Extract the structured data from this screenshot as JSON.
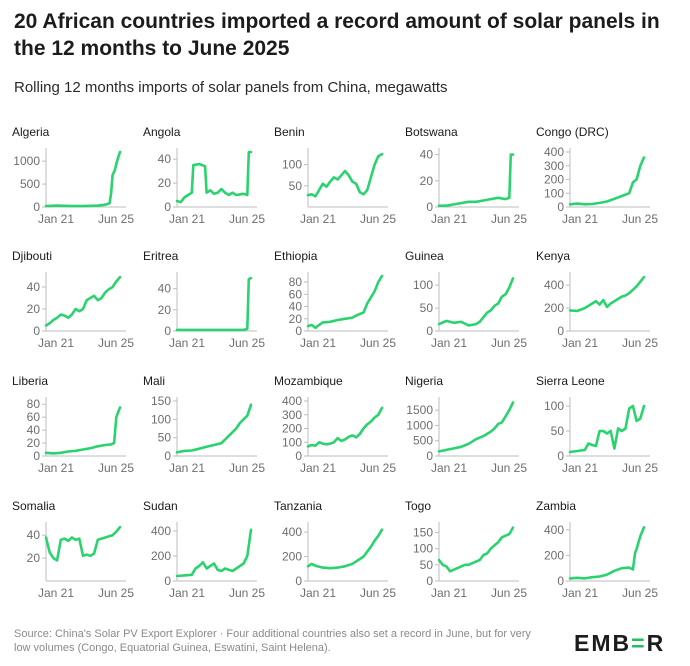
{
  "title": "20 African countries imported a record amount of solar panels in the 12 months to June 2025",
  "subtitle": "Rolling 12 months imports of solar panels from China, megawatts",
  "footer": "Source: China's Solar PV Export Explorer · Four additional countries also set a record in June, but for very low volumes (Congo, Equatorial Guinea, Eswatini, Saint Helena).",
  "logo": {
    "pre": "EMB",
    "accent": "=",
    "post": "R"
  },
  "colors": {
    "line": "#2bd36f",
    "axis": "#bdbdbd",
    "text": "#6e6e6e"
  },
  "chart_data": [
    {
      "type": "line",
      "country": "Algeria",
      "xlabels": [
        "Jan 21",
        "Jun 25"
      ],
      "yticks": [
        0,
        500,
        1000
      ],
      "ylim": [
        0,
        1200
      ],
      "x": [
        0,
        0.15,
        0.3,
        0.5,
        0.7,
        0.8,
        0.86,
        0.88,
        0.9,
        0.93,
        0.96,
        1
      ],
      "values": [
        20,
        30,
        25,
        20,
        30,
        50,
        80,
        300,
        700,
        800,
        1000,
        1200
      ]
    },
    {
      "type": "line",
      "country": "Angola",
      "xlabels": [
        "Jan 21",
        "Jun 25"
      ],
      "yticks": [
        0,
        20,
        40
      ],
      "ylim": [
        0,
        46
      ],
      "x": [
        0,
        0.05,
        0.1,
        0.15,
        0.2,
        0.22,
        0.3,
        0.38,
        0.4,
        0.45,
        0.5,
        0.55,
        0.6,
        0.65,
        0.7,
        0.75,
        0.8,
        0.9,
        0.95,
        0.97,
        1
      ],
      "values": [
        5,
        4,
        8,
        10,
        12,
        35,
        36,
        34,
        12,
        14,
        11,
        12,
        15,
        12,
        10,
        12,
        10,
        11,
        10,
        46,
        46
      ]
    },
    {
      "type": "line",
      "country": "Benin",
      "xlabels": [
        "Jan 21",
        "Jun 25"
      ],
      "yticks": [
        50,
        100
      ],
      "ylim": [
        0,
        130
      ],
      "x": [
        0,
        0.05,
        0.1,
        0.15,
        0.2,
        0.25,
        0.3,
        0.35,
        0.4,
        0.45,
        0.5,
        0.55,
        0.6,
        0.65,
        0.7,
        0.75,
        0.8,
        0.85,
        0.9,
        0.95,
        1
      ],
      "values": [
        28,
        30,
        25,
        40,
        55,
        48,
        60,
        70,
        65,
        75,
        85,
        75,
        60,
        55,
        35,
        30,
        40,
        70,
        100,
        120,
        125
      ]
    },
    {
      "type": "line",
      "country": "Botswana",
      "xlabels": [
        "Jan 21",
        "Jun 25"
      ],
      "yticks": [
        0,
        20,
        40
      ],
      "ylim": [
        0,
        42
      ],
      "x": [
        0,
        0.1,
        0.2,
        0.3,
        0.4,
        0.5,
        0.6,
        0.7,
        0.8,
        0.9,
        0.95,
        0.97,
        1
      ],
      "values": [
        1,
        1,
        2,
        3,
        4,
        4,
        5,
        6,
        7,
        6,
        7,
        40,
        40
      ]
    },
    {
      "type": "line",
      "country": "Congo (DRC)",
      "xlabels": [
        "Jan 21",
        "Jun 25"
      ],
      "yticks": [
        0,
        100,
        200,
        300,
        400
      ],
      "ylim": [
        0,
        400
      ],
      "x": [
        0,
        0.1,
        0.2,
        0.3,
        0.4,
        0.5,
        0.6,
        0.7,
        0.75,
        0.8,
        0.85,
        0.9,
        0.95,
        1
      ],
      "values": [
        20,
        25,
        20,
        22,
        30,
        40,
        60,
        80,
        90,
        100,
        180,
        200,
        300,
        360
      ]
    },
    {
      "type": "line",
      "country": "Djibouti",
      "xlabels": [
        "Jan 21",
        "Jun 25"
      ],
      "yticks": [
        0,
        20,
        40
      ],
      "ylim": [
        0,
        50
      ],
      "x": [
        0,
        0.05,
        0.1,
        0.15,
        0.2,
        0.25,
        0.3,
        0.35,
        0.4,
        0.45,
        0.5,
        0.55,
        0.6,
        0.65,
        0.7,
        0.75,
        0.8,
        0.85,
        0.9,
        0.95,
        1
      ],
      "values": [
        5,
        7,
        10,
        12,
        15,
        14,
        12,
        15,
        20,
        18,
        20,
        28,
        30,
        32,
        28,
        30,
        35,
        38,
        40,
        45,
        49
      ]
    },
    {
      "type": "line",
      "country": "Eritrea",
      "xlabels": [
        "Jan 21",
        "Jun 25"
      ],
      "yticks": [
        0,
        20,
        40
      ],
      "ylim": [
        0,
        52
      ],
      "x": [
        0,
        0.2,
        0.4,
        0.6,
        0.8,
        0.9,
        0.95,
        0.97,
        1
      ],
      "values": [
        1,
        1,
        1,
        1,
        1,
        1,
        2,
        49,
        50
      ]
    },
    {
      "type": "line",
      "country": "Ethiopia",
      "xlabels": [
        "Jan 21",
        "Jun 25"
      ],
      "yticks": [
        0,
        20,
        40,
        60,
        80
      ],
      "ylim": [
        0,
        90
      ],
      "x": [
        0,
        0.05,
        0.1,
        0.15,
        0.2,
        0.3,
        0.4,
        0.5,
        0.6,
        0.65,
        0.7,
        0.75,
        0.8,
        0.85,
        0.9,
        0.95,
        1
      ],
      "values": [
        8,
        10,
        5,
        10,
        14,
        15,
        18,
        20,
        22,
        25,
        28,
        30,
        45,
        55,
        65,
        80,
        90
      ]
    },
    {
      "type": "line",
      "country": "Guinea",
      "xlabels": [
        "Jan 21",
        "Jun 25"
      ],
      "yticks": [
        0,
        50,
        100
      ],
      "ylim": [
        0,
        120
      ],
      "x": [
        0,
        0.1,
        0.2,
        0.3,
        0.4,
        0.5,
        0.55,
        0.6,
        0.65,
        0.7,
        0.75,
        0.8,
        0.85,
        0.9,
        0.95,
        1
      ],
      "values": [
        15,
        22,
        18,
        20,
        12,
        15,
        20,
        30,
        40,
        45,
        55,
        60,
        75,
        80,
        95,
        115
      ]
    },
    {
      "type": "line",
      "country": "Kenya",
      "xlabels": [
        "Jan 21",
        "Jun 25"
      ],
      "yticks": [
        0,
        200,
        400
      ],
      "ylim": [
        0,
        480
      ],
      "x": [
        0,
        0.1,
        0.2,
        0.25,
        0.3,
        0.35,
        0.4,
        0.45,
        0.5,
        0.55,
        0.6,
        0.65,
        0.7,
        0.75,
        0.8,
        0.85,
        0.9,
        0.95,
        1
      ],
      "values": [
        180,
        175,
        200,
        220,
        240,
        260,
        230,
        270,
        210,
        240,
        260,
        280,
        300,
        310,
        330,
        360,
        390,
        430,
        470
      ]
    },
    {
      "type": "line",
      "country": "Liberia",
      "xlabels": [
        "Jan 21",
        "Jun 25"
      ],
      "yticks": [
        0,
        20,
        40,
        60,
        80
      ],
      "ylim": [
        0,
        85
      ],
      "x": [
        0,
        0.1,
        0.2,
        0.3,
        0.4,
        0.5,
        0.6,
        0.7,
        0.8,
        0.88,
        0.92,
        0.95,
        1
      ],
      "values": [
        5,
        4,
        5,
        7,
        8,
        10,
        12,
        15,
        17,
        18,
        20,
        60,
        75
      ]
    },
    {
      "type": "line",
      "country": "Mali",
      "xlabels": [
        "Jan 21",
        "Jun 25"
      ],
      "yticks": [
        0,
        50,
        100,
        150
      ],
      "ylim": [
        0,
        150
      ],
      "x": [
        0,
        0.1,
        0.2,
        0.3,
        0.4,
        0.5,
        0.6,
        0.65,
        0.7,
        0.75,
        0.8,
        0.85,
        0.9,
        0.95,
        1
      ],
      "values": [
        10,
        14,
        15,
        20,
        25,
        30,
        35,
        45,
        55,
        65,
        75,
        90,
        100,
        110,
        140
      ]
    },
    {
      "type": "line",
      "country": "Mozambique",
      "xlabels": [
        "Jan 21",
        "Jun 25"
      ],
      "yticks": [
        0,
        100,
        200,
        300,
        400
      ],
      "ylim": [
        0,
        400
      ],
      "x": [
        0,
        0.05,
        0.1,
        0.15,
        0.2,
        0.25,
        0.3,
        0.35,
        0.4,
        0.45,
        0.5,
        0.55,
        0.6,
        0.65,
        0.7,
        0.75,
        0.8,
        0.85,
        0.9,
        0.95,
        1
      ],
      "values": [
        70,
        80,
        75,
        100,
        90,
        85,
        90,
        100,
        130,
        110,
        120,
        140,
        150,
        135,
        160,
        200,
        230,
        250,
        280,
        300,
        350
      ]
    },
    {
      "type": "line",
      "country": "Nigeria",
      "xlabels": [
        "Jan 21",
        "Jun 25"
      ],
      "yticks": [
        0,
        500,
        1000,
        1500
      ],
      "ylim": [
        0,
        1800
      ],
      "x": [
        0,
        0.1,
        0.2,
        0.3,
        0.4,
        0.5,
        0.6,
        0.7,
        0.75,
        0.8,
        0.85,
        0.9,
        0.95,
        1
      ],
      "values": [
        150,
        200,
        250,
        300,
        400,
        550,
        650,
        800,
        900,
        1050,
        1100,
        1300,
        1500,
        1750
      ]
    },
    {
      "type": "line",
      "country": "Sierra Leone",
      "xlabels": [
        "Jan 21",
        "Jun 25"
      ],
      "yticks": [
        0,
        50,
        100
      ],
      "ylim": [
        0,
        110
      ],
      "x": [
        0,
        0.1,
        0.2,
        0.25,
        0.3,
        0.35,
        0.4,
        0.45,
        0.5,
        0.55,
        0.6,
        0.65,
        0.7,
        0.75,
        0.8,
        0.85,
        0.9,
        0.95,
        1
      ],
      "values": [
        8,
        10,
        12,
        25,
        22,
        20,
        50,
        50,
        45,
        50,
        15,
        55,
        50,
        55,
        95,
        100,
        70,
        75,
        100
      ]
    },
    {
      "type": "line",
      "country": "Somalia",
      "xlabels": [
        "Jan 21",
        "Jun 25"
      ],
      "yticks": [
        20,
        40
      ],
      "ylim": [
        0,
        48
      ],
      "x": [
        0,
        0.05,
        0.1,
        0.15,
        0.2,
        0.25,
        0.3,
        0.35,
        0.4,
        0.45,
        0.5,
        0.55,
        0.6,
        0.65,
        0.7,
        0.75,
        0.8,
        0.85,
        0.9,
        0.95,
        1
      ],
      "values": [
        38,
        25,
        20,
        18,
        36,
        37,
        35,
        38,
        36,
        37,
        22,
        23,
        22,
        24,
        36,
        37,
        38,
        39,
        40,
        43,
        47
      ]
    },
    {
      "type": "line",
      "country": "Sudan",
      "xlabels": [
        "Jan 21",
        "Jun 25"
      ],
      "yticks": [
        0,
        200,
        400
      ],
      "ylim": [
        0,
        440
      ],
      "x": [
        0,
        0.1,
        0.2,
        0.25,
        0.3,
        0.35,
        0.4,
        0.45,
        0.5,
        0.55,
        0.6,
        0.65,
        0.7,
        0.75,
        0.8,
        0.85,
        0.9,
        0.95,
        1
      ],
      "values": [
        40,
        45,
        50,
        100,
        120,
        150,
        100,
        120,
        140,
        90,
        80,
        100,
        90,
        80,
        100,
        120,
        140,
        200,
        410
      ]
    },
    {
      "type": "line",
      "country": "Tanzania",
      "xlabels": [
        "Jan 21",
        "Jun 25"
      ],
      "yticks": [
        0,
        200,
        400
      ],
      "ylim": [
        0,
        450
      ],
      "x": [
        0,
        0.05,
        0.1,
        0.2,
        0.3,
        0.4,
        0.5,
        0.6,
        0.7,
        0.75,
        0.8,
        0.85,
        0.9,
        0.95,
        1
      ],
      "values": [
        120,
        140,
        125,
        110,
        105,
        110,
        120,
        140,
        180,
        200,
        240,
        280,
        330,
        370,
        420
      ]
    },
    {
      "type": "line",
      "country": "Togo",
      "xlabels": [
        "Jan 21",
        "Jun 25"
      ],
      "yticks": [
        0,
        50,
        100,
        150
      ],
      "ylim": [
        0,
        170
      ],
      "x": [
        0,
        0.05,
        0.1,
        0.15,
        0.2,
        0.25,
        0.3,
        0.35,
        0.4,
        0.45,
        0.5,
        0.55,
        0.6,
        0.65,
        0.7,
        0.75,
        0.8,
        0.85,
        0.9,
        0.95,
        1
      ],
      "values": [
        65,
        50,
        45,
        30,
        35,
        40,
        45,
        50,
        50,
        55,
        60,
        65,
        80,
        85,
        100,
        110,
        120,
        135,
        140,
        145,
        165
      ]
    },
    {
      "type": "line",
      "country": "Zambia",
      "xlabels": [
        "Jan 21",
        "Jun 25"
      ],
      "yticks": [
        0,
        200,
        400
      ],
      "ylim": [
        0,
        430
      ],
      "x": [
        0,
        0.1,
        0.2,
        0.3,
        0.4,
        0.5,
        0.6,
        0.7,
        0.8,
        0.85,
        0.88,
        0.9,
        0.95,
        1
      ],
      "values": [
        20,
        25,
        20,
        30,
        35,
        50,
        80,
        100,
        105,
        90,
        220,
        250,
        350,
        420
      ]
    }
  ]
}
